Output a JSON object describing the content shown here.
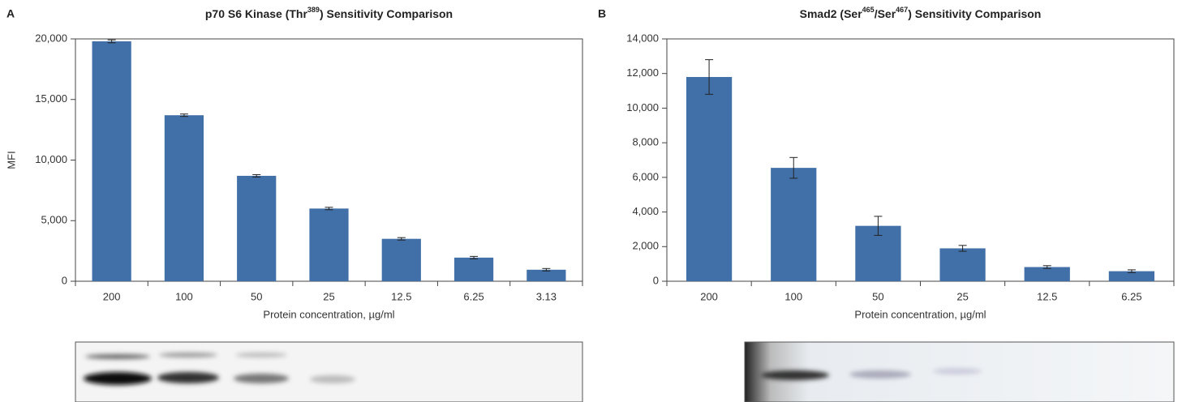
{
  "chart_data": [
    {
      "type": "bar",
      "panel": "A",
      "title": [
        "p70 S6 Kinase (Thr",
        "389",
        ") Sensitivity Comparison"
      ],
      "categories": [
        "200",
        "100",
        "50",
        "25",
        "12.5",
        "6.25",
        "3.13"
      ],
      "values": [
        19800,
        13700,
        8700,
        6000,
        3500,
        1950,
        950
      ],
      "errors": [
        120,
        100,
        100,
        100,
        100,
        100,
        100
      ],
      "color": "#4170a8",
      "ylabel": "MFI",
      "xlabel": "Protein concentration, µg/ml",
      "ylim": [
        0,
        20000
      ],
      "yticks": [
        0,
        {
          "value": 5000,
          "label": "5,000"
        },
        {
          "value": 10000,
          "label": "10,000"
        },
        {
          "value": 15000,
          "label": "15,000"
        },
        {
          "value": 20000,
          "label": "20,000"
        }
      ]
    },
    {
      "type": "bar",
      "panel": "B",
      "title": [
        "Smad2 (Ser",
        "465",
        "/Ser",
        "467",
        ") Sensitivity Comparison"
      ],
      "categories": [
        "200",
        "100",
        "50",
        "25",
        "12.5",
        "6.25"
      ],
      "values": [
        11800,
        6550,
        3200,
        1900,
        820,
        580
      ],
      "errors": [
        1000,
        600,
        550,
        170,
        80,
        80
      ],
      "color": "#4170a8",
      "xlabel": "Protein concentration, µg/ml",
      "ylim": [
        0,
        14000
      ],
      "yticks": [
        0,
        {
          "value": 2000,
          "label": "2,000"
        },
        {
          "value": 4000,
          "label": "4,000"
        },
        {
          "value": 6000,
          "label": "6,000"
        },
        {
          "value": 8000,
          "label": "8,000"
        },
        {
          "value": 10000,
          "label": "10,000"
        },
        {
          "value": 12000,
          "label": "12,000"
        },
        {
          "value": 14000,
          "label": "14,000"
        }
      ]
    }
  ]
}
